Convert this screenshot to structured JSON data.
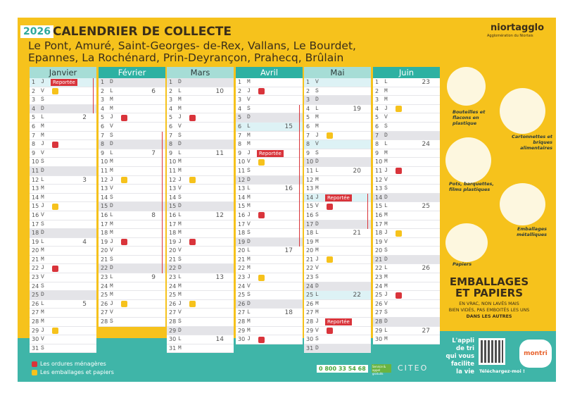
{
  "header": {
    "year": "2026",
    "title": "CALENDRIER DE COLLECTE",
    "communes_line1": "Le Pont, Amuré, Saint-Georges- de-Rex, Vallans, Le Bourdet,",
    "communes_line2": "Epannes, La Rochénard, Prin-Deyrançon, Prahecq, Brûlain"
  },
  "logo": {
    "name": "niortagglo",
    "sub": "Agglomération du Niortais"
  },
  "reportee_label": "Reportée",
  "colors": {
    "red": "#d9343b",
    "yellow": "#f6c21c",
    "teal": "#2db1a2",
    "background": "#f6c21c"
  },
  "months": [
    {
      "name": "Janvier",
      "days": "JVSDLMMJVSDLMMJVSDLMMJVSDLMMJVS",
      "weeks": {
        "5": "2",
        "12": "3",
        "19": "4",
        "26": "5"
      },
      "red": [
        8,
        22
      ],
      "yellow": [
        2,
        15,
        29
      ],
      "reportee": [
        1
      ],
      "holidays": [
        1
      ],
      "vacation": [
        1,
        4
      ]
    },
    {
      "name": "Février",
      "days": "DLMMJVSDLMMJVSDLMMJVSDLMMJVS",
      "weeks": {
        "2": "6",
        "9": "7",
        "16": "8",
        "23": "9"
      },
      "red": [
        5,
        19
      ],
      "yellow": [
        12,
        26
      ],
      "reportee": [],
      "holidays": [],
      "vacation": [
        7,
        22
      ]
    },
    {
      "name": "Mars",
      "days": "DLMMJVSDLMMJVSDLMMJVSDLMMJVSDLM",
      "weeks": {
        "2": "10",
        "9": "11",
        "16": "12",
        "23": "13",
        "30": "14"
      },
      "red": [
        5,
        19
      ],
      "yellow": [
        12,
        26
      ],
      "reportee": [],
      "holidays": [],
      "vacation": null
    },
    {
      "name": "Avril",
      "days": "MJVSDLMMJVSDLMMJVSDLMMJVSDLMMJ",
      "weeks": {
        "6": "15",
        "13": "16",
        "20": "17",
        "27": "18"
      },
      "red": [
        2,
        16,
        30
      ],
      "yellow": [
        10,
        23
      ],
      "reportee": [
        9
      ],
      "holidays": [
        6
      ],
      "vacation": [
        4,
        19
      ]
    },
    {
      "name": "Mai",
      "days": "VSDLMMJVSDLMMJVSDLMMJVSDLMMJVSD",
      "weeks": {
        "4": "19",
        "11": "20",
        "18": "21",
        "25": "22"
      },
      "red": [
        15,
        29
      ],
      "yellow": [
        7,
        21
      ],
      "reportee": [
        14,
        28
      ],
      "holidays": [
        1,
        8,
        14,
        25
      ],
      "vacation": [
        14,
        17
      ]
    },
    {
      "name": "Juin",
      "days": "LMMJVSDLMMJVSDLMMJVSDLMMJVSDLM",
      "weeks": {
        "1": "23",
        "8": "24",
        "15": "25",
        "22": "26",
        "29": "27"
      },
      "red": [
        11,
        25
      ],
      "yellow": [
        4,
        18
      ],
      "reportee": [],
      "holidays": [],
      "vacation": null
    }
  ],
  "categories": [
    "Bouteilles et flacons en plastique",
    "Cartonnettes et briques alimentaires",
    "Pots, barquettes, films plastiques",
    "Emballages métalliques",
    "Papiers"
  ],
  "emballages": {
    "title1": "EMBALLAGES",
    "title2": "ET PAPIERS",
    "line1": "EN VRAC, NON LAVÉS MAIS",
    "line2": "BIEN VIDÉS, PAS EMBOITÉS LES UNS",
    "line3": "DANS LES AUTRES"
  },
  "app": {
    "line1": "L'appli",
    "line2": "de tri",
    "line3": "qui vous",
    "line4": "facilite",
    "line5": "la vie",
    "download": "Téléchargez-moi !",
    "brand": "montri"
  },
  "legend": {
    "red": "Les ordures ménagères",
    "yellow": "Les emballages et papiers"
  },
  "footer": {
    "phone": "0 800 33 54 68",
    "phone_tag": "Service & appel gratuits",
    "partner": "CITEO"
  }
}
